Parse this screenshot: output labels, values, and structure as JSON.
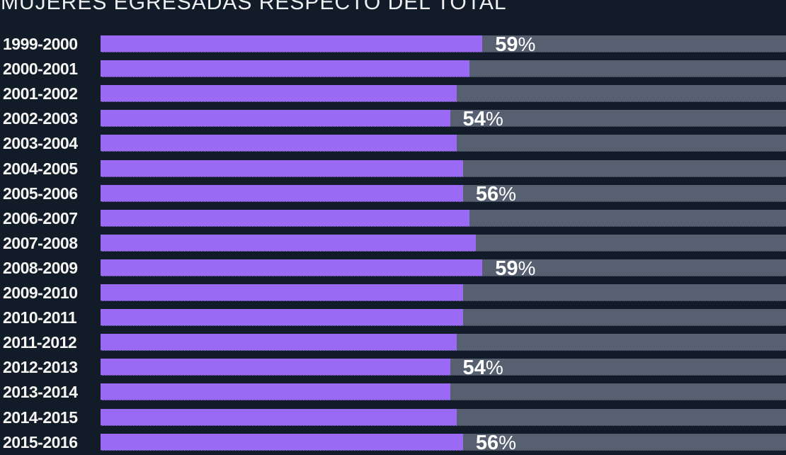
{
  "chart_data": {
    "type": "bar",
    "orientation": "horizontal",
    "title": "MUJERES EGRESADAS RESPECTO DEL TOTAL",
    "xlabel": "",
    "ylabel": "",
    "unit": "%",
    "xlim": [
      0,
      106
    ],
    "grid": false,
    "legend_position": "none",
    "categories": [
      "1999-2000",
      "2000-2001",
      "2001-2002",
      "2002-2003",
      "2003-2004",
      "2004-2005",
      "2005-2006",
      "2006-2007",
      "2007-2008",
      "2008-2009",
      "2009-2010",
      "2010-2011",
      "2011-2012",
      "2012-2013",
      "2013-2014",
      "2014-2015",
      "2015-2016"
    ],
    "values": [
      59,
      57,
      55,
      54,
      55,
      56,
      56,
      57,
      58,
      59,
      56,
      56,
      55,
      54,
      54,
      55,
      56
    ],
    "shown_value_labels": [
      "59%",
      "",
      "",
      "54%",
      "",
      "",
      "56%",
      "",
      "",
      "59%",
      "",
      "",
      "",
      "54%",
      "",
      "",
      "56%"
    ],
    "colors": {
      "background": "#121B28",
      "bar": "#9B6AF5",
      "track": "#566070",
      "title_text": "#EDEFF1",
      "category_text": "#F5F5F3",
      "value_text": "#FFFFFF"
    }
  }
}
